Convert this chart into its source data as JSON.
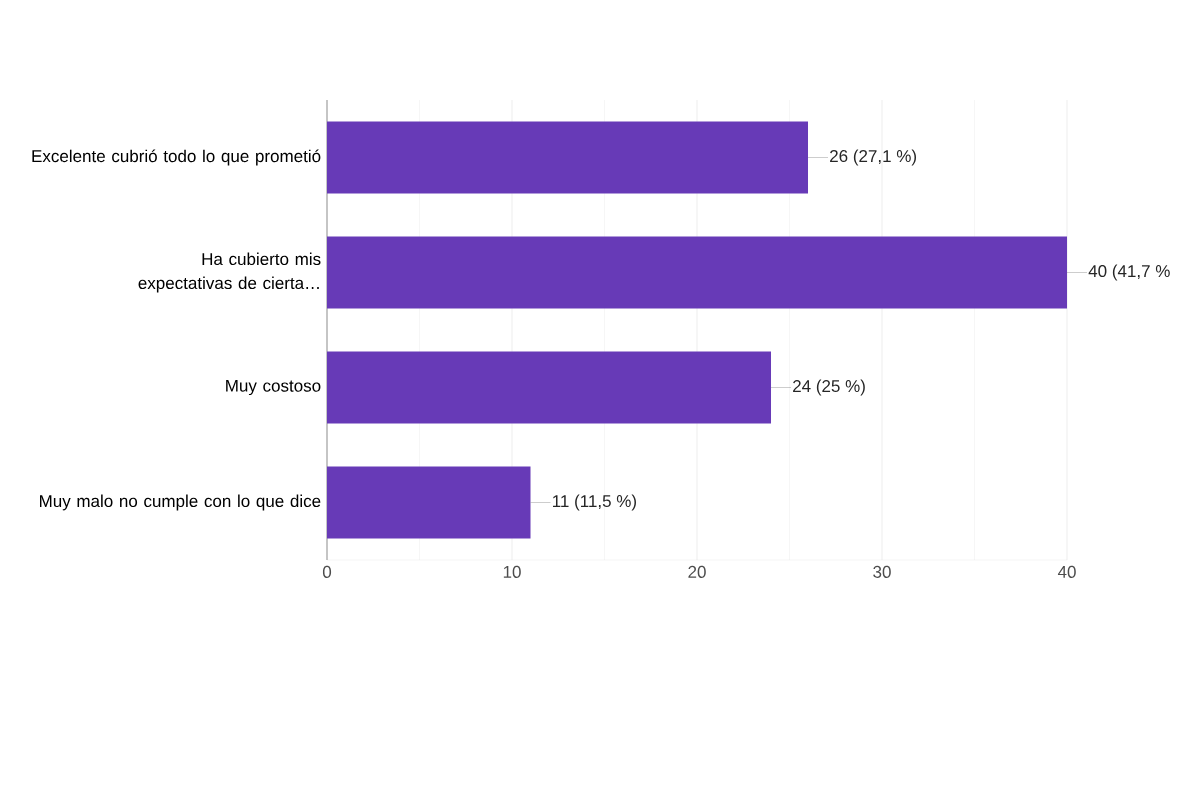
{
  "chart_data": {
    "type": "bar",
    "orientation": "horizontal",
    "categories": [
      "Excelente cubrió todo lo que prometió",
      "Ha cubierto mis expectativas de cierta…",
      "Muy costoso",
      "Muy malo no cumple con lo que dice"
    ],
    "values": [
      26,
      40,
      24,
      11
    ],
    "color": "#673ab7",
    "value_labels": [
      "26 (27,1 %)",
      "40 (41,7 %",
      "24 (25 %)",
      "11 (11,5 %)"
    ],
    "xlim": [
      0,
      40
    ],
    "xticks": [
      0,
      10,
      20,
      30,
      40
    ],
    "grid": "x"
  }
}
